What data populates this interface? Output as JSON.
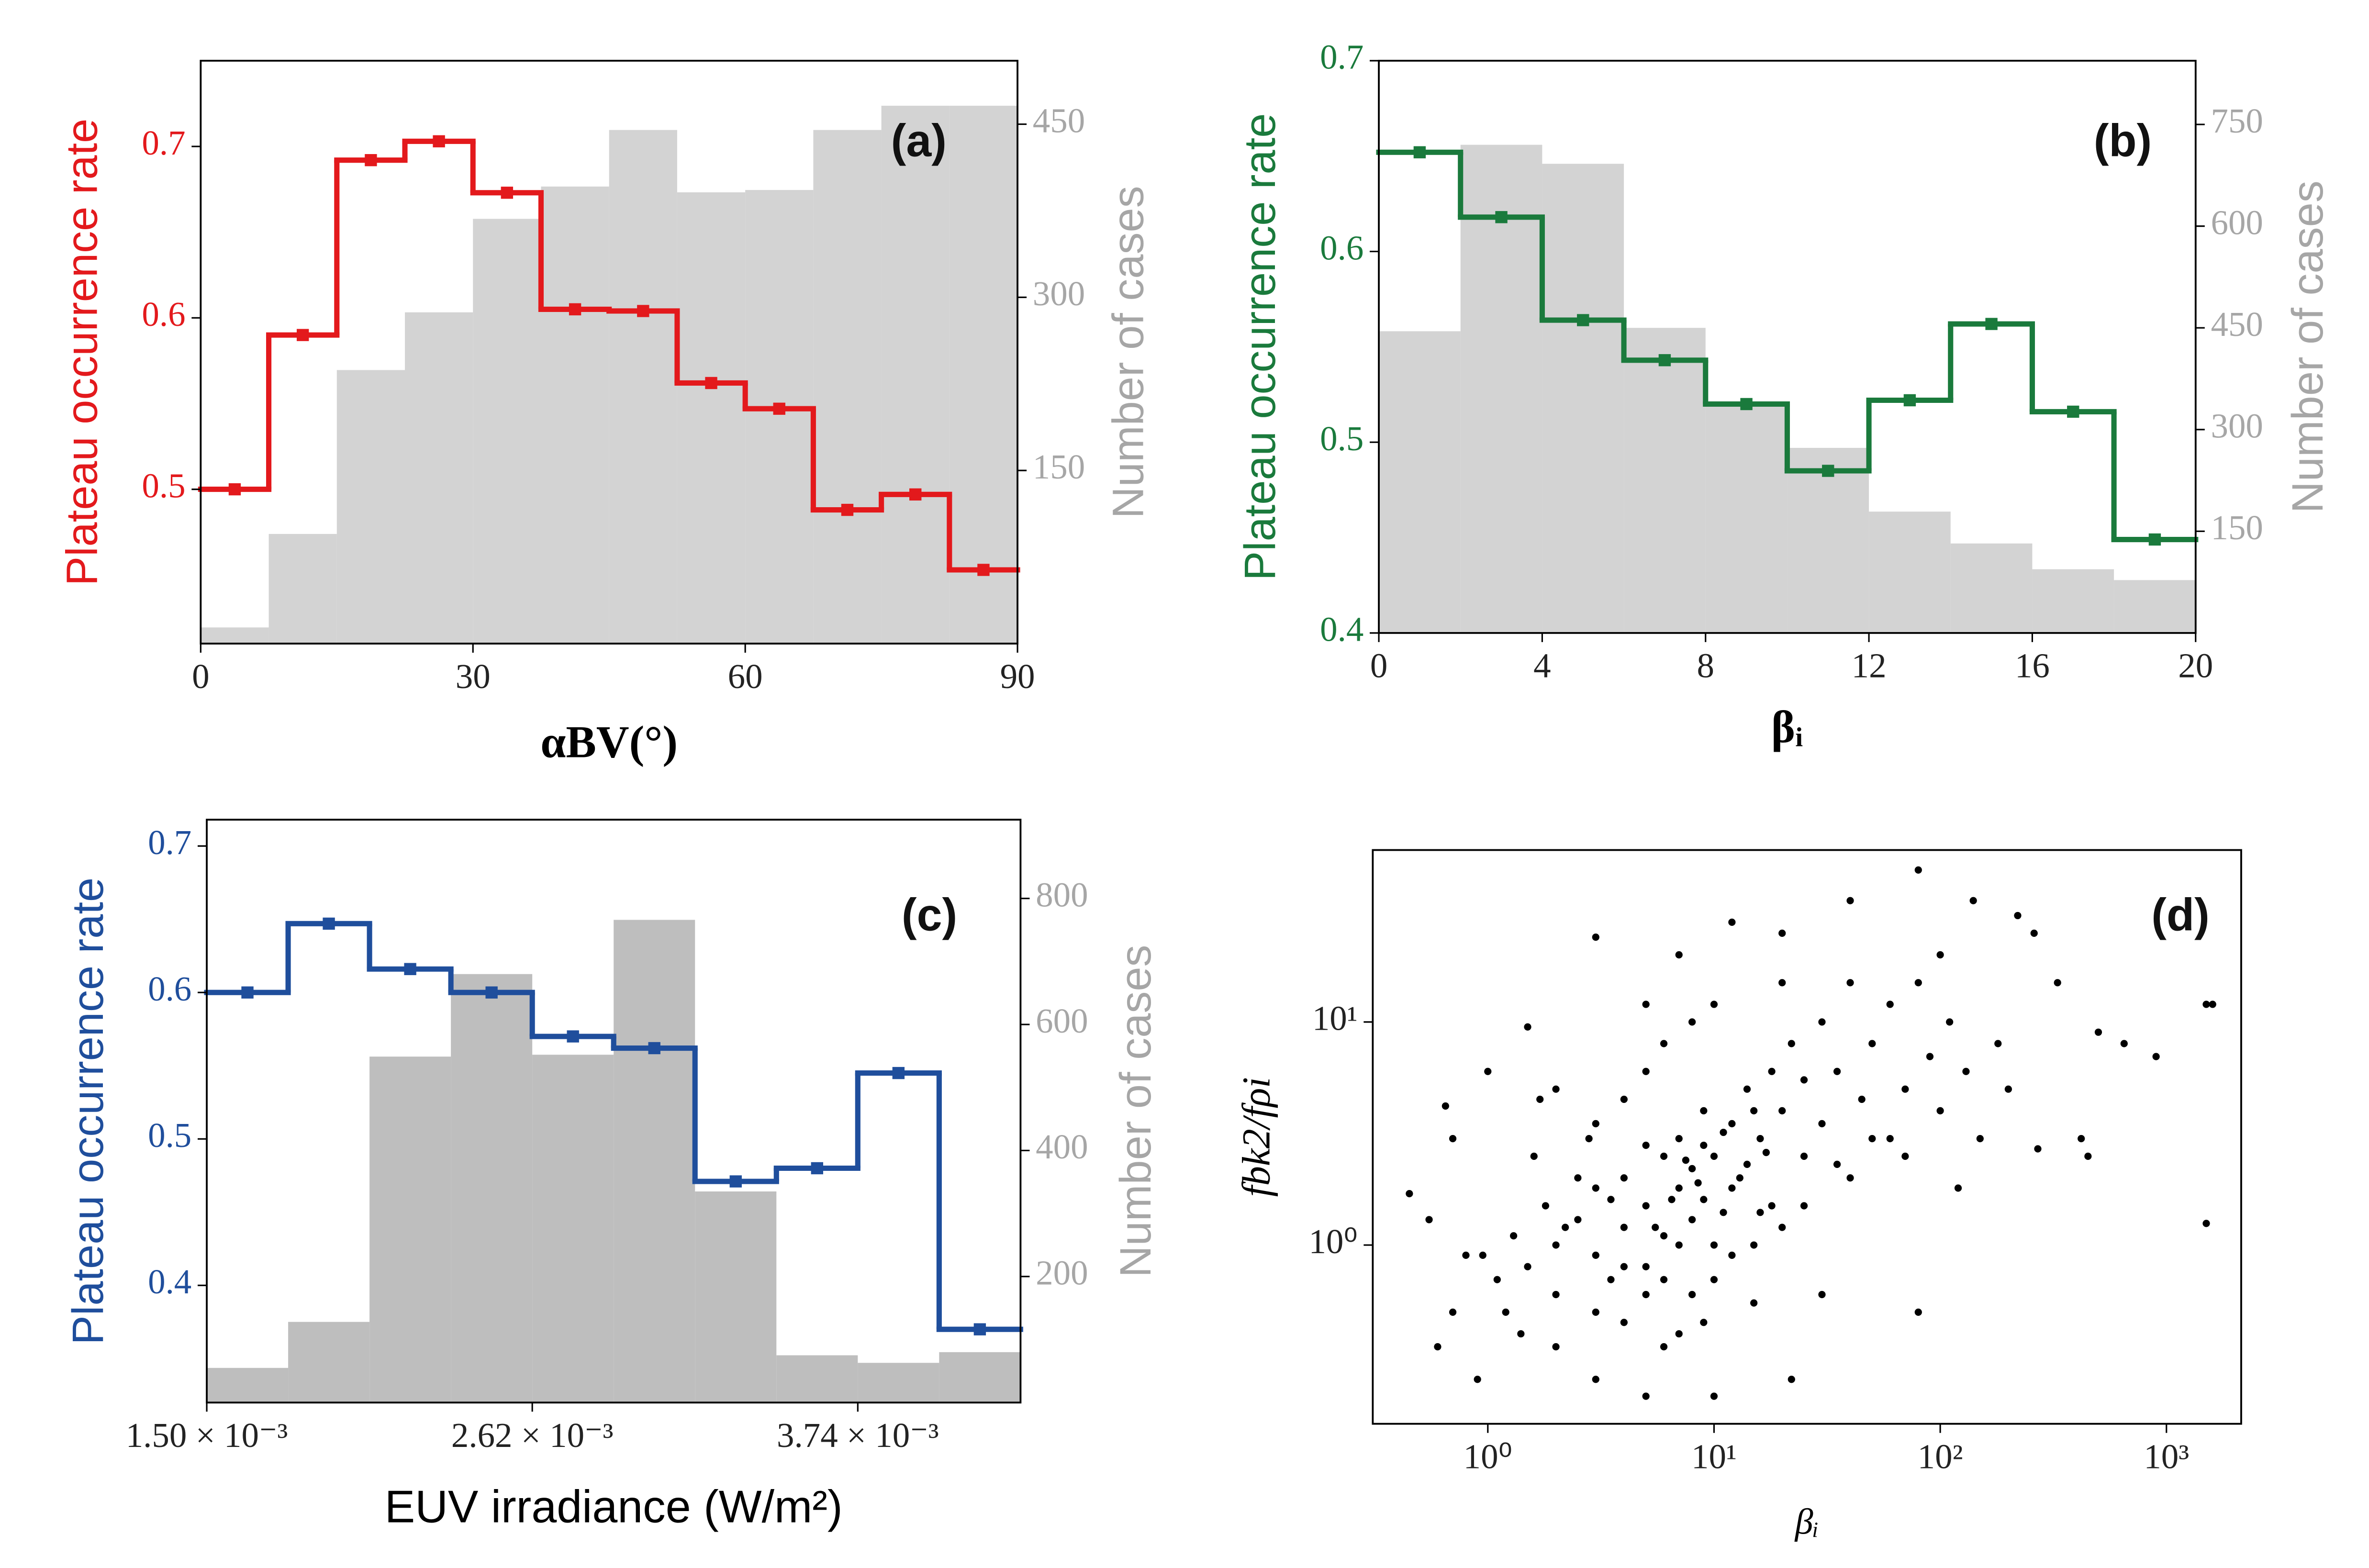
{
  "chart_data": [
    {
      "type": "step_histogram",
      "annotation": "(a)",
      "xlabel": "αBV(°)",
      "ylabel": "Plateau occurrence rate",
      "y2label": "Number of cases",
      "y2label_color": "#a6a6a6",
      "bins": [
        0,
        7.5,
        15,
        22.5,
        30,
        37.5,
        45,
        52.5,
        60,
        67.5,
        75,
        82.5,
        90
      ],
      "series": [
        {
          "color": "#e3191c",
          "values": [
            0.5,
            0.59,
            0.692,
            0.703,
            0.673,
            0.605,
            0.604,
            0.562,
            0.547,
            0.488,
            0.497,
            0.453
          ]
        },
        {
          "color": "#d3d3d3",
          "axis": "y2",
          "values": [
            14,
            95,
            237,
            287,
            368,
            396,
            445,
            391,
            393,
            445,
            466,
            466
          ]
        }
      ],
      "xlim": [
        0,
        90
      ],
      "xticks": [
        0,
        30,
        60,
        90
      ],
      "ylim": [
        0.41,
        0.75
      ],
      "yticks": [
        0.5,
        0.6,
        0.7
      ],
      "y2lim": [
        0,
        505
      ],
      "y2ticks": [
        150,
        300,
        450
      ]
    },
    {
      "type": "step_histogram",
      "annotation": "(b)",
      "xlabel": "βᵢ",
      "ylabel": "Plateau occurrence rate",
      "y2label": "Number of cases",
      "y2label_color": "#a6a6a6",
      "bins": [
        0,
        2,
        4,
        6,
        8,
        10,
        12,
        14,
        16,
        18,
        20
      ],
      "series": [
        {
          "color": "#1a7a3c",
          "values": [
            0.652,
            0.618,
            0.564,
            0.543,
            0.52,
            0.485,
            0.522,
            0.562,
            0.516,
            0.449
          ]
        },
        {
          "color": "#d3d3d3",
          "axis": "y2",
          "values": [
            445,
            720,
            692,
            450,
            340,
            273,
            179,
            132,
            94,
            78
          ]
        }
      ],
      "xlim": [
        0,
        20
      ],
      "xticks": [
        0,
        4,
        8,
        12,
        16,
        20
      ],
      "ylim": [
        0.4,
        0.7
      ],
      "yticks": [
        0.4,
        0.5,
        0.6,
        0.7
      ],
      "y2lim": [
        0,
        844
      ],
      "y2ticks": [
        150,
        300,
        450,
        600,
        750
      ]
    },
    {
      "type": "step_histogram",
      "annotation": "(c)",
      "xlabel": "EUV irradiance (W/m²)",
      "ylabel": "Plateau occurrence rate",
      "y2label": "Number of cases",
      "y2label_color": "#a6a6a6",
      "bins": [
        0.0015,
        0.00178,
        0.00206,
        0.00234,
        0.00262,
        0.0029,
        0.00318,
        0.00346,
        0.00374,
        0.00402,
        0.0043
      ],
      "series": [
        {
          "color": "#1f4e9c",
          "values": [
            0.6,
            0.647,
            0.616,
            0.6,
            0.57,
            0.562,
            0.471,
            0.48,
            0.545,
            0.37
          ]
        },
        {
          "color": "#bebebe",
          "axis": "y2",
          "values": [
            55,
            128,
            549,
            680,
            552,
            766,
            335,
            75,
            63,
            80
          ]
        }
      ],
      "xlim": [
        0.0015,
        0.0043
      ],
      "xticks": [
        {
          "value": 0.0015,
          "label": "1.50 × 10⁻³"
        },
        {
          "value": 0.00262,
          "label": "2.62 × 10⁻³"
        },
        {
          "value": 0.00374,
          "label": "3.74 × 10⁻³"
        }
      ],
      "ylim": [
        0.32,
        0.718
      ],
      "yticks": [
        0.4,
        0.5,
        0.6,
        0.7
      ],
      "y2lim": [
        0,
        925
      ],
      "y2ticks": [
        200,
        400,
        600,
        800
      ]
    },
    {
      "type": "scatter",
      "annotation": "(d)",
      "xlabel": "βᵢ",
      "ylabel": "fbk2/fρi",
      "color": "#000000",
      "xscale": "log",
      "yscale": "log",
      "x": [
        0.45,
        0.55,
        0.6,
        0.65,
        0.7,
        1.0,
        1.5,
        1.7,
        3,
        5,
        7,
        12,
        20,
        40,
        80,
        140,
        220,
        260,
        330,
        500,
        650,
        900,
        1500,
        1600,
        1500,
        420,
        450,
        270,
        120,
        80,
        30,
        22,
        10,
        5,
        3,
        2,
        1.2,
        0.9,
        0.7,
        0.8,
        1.5,
        2,
        2.5,
        3,
        3.5,
        4,
        4,
        5,
        5,
        6,
        6,
        7,
        7,
        8,
        8,
        9,
        9,
        10,
        10,
        12,
        12,
        14,
        14,
        16,
        18,
        18,
        20,
        22,
        25,
        25,
        30,
        30,
        35,
        40,
        45,
        50,
        60,
        60,
        70,
        90,
        100,
        110,
        130,
        150,
        180,
        200,
        3,
        2.5,
        1.8,
        1.3,
        1.1,
        2,
        3,
        4,
        5,
        6,
        8,
        10,
        12,
        15,
        20,
        4,
        5,
        6,
        8,
        10,
        6,
        7,
        9,
        15,
        3,
        4,
        5,
        7,
        9,
        11,
        13,
        16,
        2.2,
        3.5,
        5.5,
        6.5,
        7.5,
        8.5,
        11,
        15,
        17,
        25,
        35,
        50,
        70,
        1.6,
        2.8,
        2.0,
        40,
        80,
        100,
        20,
        1.4,
        0.95
      ],
      "y": [
        1.7,
        1.3,
        0.35,
        4.2,
        3.0,
        6.0,
        9.5,
        4.5,
        24,
        12,
        20,
        28,
        25,
        35,
        48,
        35,
        30,
        25,
        15,
        9,
        8,
        7,
        12,
        12,
        1.25,
        3,
        2.5,
        2.7,
        1.8,
        0.5,
        0.6,
        0.25,
        0.21,
        0.21,
        0.25,
        0.35,
        0.5,
        0.25,
        0.5,
        0.9,
        0.8,
        1.0,
        1.3,
        0.9,
        1.6,
        1.2,
        2.0,
        1.5,
        0.8,
        2.5,
        1.1,
        1.8,
        3.0,
        1.3,
        2.2,
        4.0,
        1.6,
        2.5,
        1.0,
        3.5,
        1.8,
        5.0,
        2.3,
        3.0,
        6.0,
        1.5,
        4.0,
        8.0,
        2.5,
        5.5,
        3.5,
        10,
        6,
        2.0,
        4.5,
        8,
        3,
        12,
        5,
        7,
        4,
        10,
        6,
        3,
        8,
        5,
        3.5,
        2.0,
        1.5,
        1.1,
        0.7,
        0.6,
        0.5,
        0.45,
        0.6,
        0.7,
        0.6,
        0.7,
        0.9,
        1.0,
        1.2,
        4.5,
        6,
        8,
        10,
        12,
        0.35,
        0.4,
        0.45,
        0.55,
        1.8,
        0.8,
        2.8,
        1.0,
        2.8,
        1.4,
        2.0,
        1.4,
        1.2,
        0.7,
        1.2,
        1.6,
        2.4,
        1.9,
        3.2,
        4.0,
        2.6,
        1.5,
        2.3,
        3,
        2.5,
        2.5,
        3,
        5,
        15,
        15,
        20,
        15,
        0.4,
        0.9
      ],
      "xlim": [
        0.31,
        2140
      ],
      "xticks": [
        {
          "value": 1,
          "label": "10⁰"
        },
        {
          "value": 10,
          "label": "10¹"
        },
        {
          "value": 100,
          "label": "10²"
        },
        {
          "value": 1000,
          "label": "10³"
        }
      ],
      "ylim": [
        0.158,
        59
      ],
      "yticks": [
        {
          "value": 1,
          "label": "10⁰"
        },
        {
          "value": 10,
          "label": "10¹"
        }
      ]
    }
  ]
}
